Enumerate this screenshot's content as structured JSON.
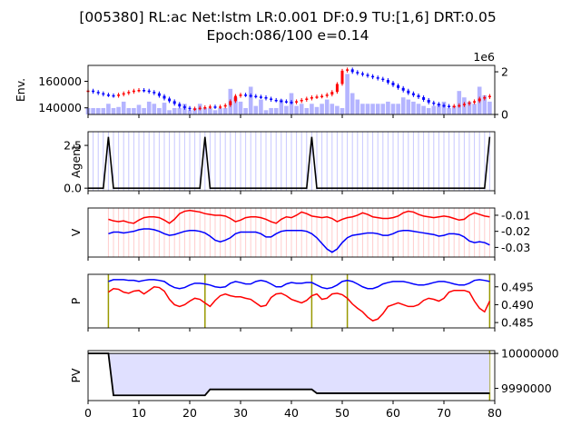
{
  "title": {
    "line1": "[005380] RL:ac Net:lstm LR:0.001 DF:0.9 TU:[1,6] DRT:0.05",
    "line2": "Epoch:086/100 e=0.14"
  },
  "chart_data": [
    {
      "id": "env",
      "type": "candlestick+bar",
      "ylabel": "Env.",
      "ylim": [
        135000,
        172000
      ],
      "yticks": [
        "140000",
        "160000"
      ],
      "ytick_values": [
        140000,
        160000
      ],
      "y2lim": [
        0,
        2300000
      ],
      "y2ticks": [
        "0",
        "2"
      ],
      "y2tick_values": [
        0,
        2000000
      ],
      "y2_offset_label": "1e6",
      "x": [
        0,
        1,
        2,
        3,
        4,
        5,
        6,
        7,
        8,
        9,
        10,
        11,
        12,
        13,
        14,
        15,
        16,
        17,
        18,
        19,
        20,
        21,
        22,
        23,
        24,
        25,
        26,
        27,
        28,
        29,
        30,
        31,
        32,
        33,
        34,
        35,
        36,
        37,
        38,
        39,
        40,
        41,
        42,
        43,
        44,
        45,
        46,
        47,
        48,
        49,
        50,
        51,
        52,
        53,
        54,
        55,
        56,
        57,
        58,
        59,
        60,
        61,
        62,
        63,
        64,
        65,
        66,
        67,
        68,
        69,
        70,
        71,
        72,
        73,
        74,
        75,
        76,
        77,
        78,
        79
      ],
      "close": [
        153000,
        152000,
        151000,
        150000,
        149500,
        149000,
        150000,
        151000,
        152000,
        153000,
        153500,
        153000,
        152000,
        151000,
        149000,
        147000,
        145000,
        143000,
        141000,
        140000,
        139000,
        139500,
        140000,
        140500,
        141000,
        140500,
        141000,
        142000,
        145000,
        149000,
        150000,
        149500,
        149000,
        148500,
        148000,
        147000,
        146000,
        145500,
        145000,
        144500,
        144000,
        145000,
        146000,
        147000,
        148000,
        148500,
        149000,
        150000,
        152000,
        158000,
        168000,
        169000,
        167000,
        166000,
        165000,
        164000,
        163000,
        162000,
        161000,
        159000,
        157000,
        155000,
        153000,
        151000,
        149500,
        148000,
        146000,
        144000,
        143000,
        142000,
        141500,
        141000,
        141500,
        142000,
        143000,
        144000,
        145000,
        147000,
        148000,
        149000
      ],
      "volume": [
        300000,
        300000,
        300000,
        300000,
        500000,
        300000,
        350000,
        600000,
        300000,
        300000,
        450000,
        300000,
        600000,
        500000,
        300000,
        550000,
        200000,
        300000,
        300000,
        500000,
        200000,
        300000,
        500000,
        300000,
        300000,
        200000,
        300000,
        300000,
        1200000,
        800000,
        600000,
        300000,
        1300000,
        400000,
        700000,
        200000,
        300000,
        300000,
        700000,
        400000,
        1000000,
        400000,
        500000,
        300000,
        500000,
        350000,
        500000,
        700000,
        500000,
        400000,
        300000,
        1900000,
        1000000,
        700000,
        500000,
        500000,
        500000,
        500000,
        500000,
        600000,
        500000,
        500000,
        800000,
        700000,
        600000,
        500000,
        400000,
        300000,
        400000,
        500000,
        600000,
        300000,
        400000,
        1100000,
        800000,
        600000,
        500000,
        1300000,
        900000,
        600000
      ],
      "bar_color": "#b4b4ff"
    },
    {
      "id": "agent",
      "type": "line",
      "ylabel": "Agent",
      "ylim": [
        -0.15,
        3.3
      ],
      "yticks": [
        "0.0",
        "2.5"
      ],
      "ytick_values": [
        0,
        2.5
      ],
      "x": [
        0,
        1,
        2,
        3,
        4,
        5,
        6,
        7,
        8,
        9,
        10,
        11,
        12,
        13,
        14,
        15,
        16,
        17,
        18,
        19,
        20,
        21,
        22,
        23,
        24,
        25,
        26,
        27,
        28,
        29,
        30,
        31,
        32,
        33,
        34,
        35,
        36,
        37,
        38,
        39,
        40,
        41,
        42,
        43,
        44,
        45,
        46,
        47,
        48,
        49,
        50,
        51,
        52,
        53,
        54,
        55,
        56,
        57,
        58,
        59,
        60,
        61,
        62,
        63,
        64,
        65,
        66,
        67,
        68,
        69,
        70,
        71,
        72,
        73,
        74,
        75,
        76,
        77,
        78,
        79
      ],
      "values": [
        0,
        0,
        0,
        0,
        3,
        0,
        0,
        0,
        0,
        0,
        0,
        0,
        0,
        0,
        0,
        0,
        0,
        0,
        0,
        0,
        0,
        0,
        0,
        3,
        0,
        0,
        0,
        0,
        0,
        0,
        0,
        0,
        0,
        0,
        0,
        0,
        0,
        0,
        0,
        0,
        0,
        0,
        0,
        0,
        3,
        0,
        0,
        0,
        0,
        0,
        0,
        0,
        0,
        0,
        0,
        0,
        0,
        0,
        0,
        0,
        0,
        0,
        0,
        0,
        0,
        0,
        0,
        0,
        0,
        0,
        0,
        0,
        0,
        0,
        0,
        0,
        0,
        0,
        0,
        3
      ],
      "line_color": "#000000",
      "vline_color": "#c8c8ff"
    },
    {
      "id": "v",
      "type": "line",
      "ylabel": "V",
      "ylim": [
        -0.036,
        -0.0055
      ],
      "yticks": [
        "-0.01",
        "-0.02",
        "-0.03"
      ],
      "ytick_values": [
        -0.01,
        -0.02,
        -0.03
      ],
      "x": [
        4,
        5,
        6,
        7,
        8,
        9,
        10,
        11,
        12,
        13,
        14,
        15,
        16,
        17,
        18,
        19,
        20,
        21,
        22,
        23,
        24,
        25,
        26,
        27,
        28,
        29,
        30,
        31,
        32,
        33,
        34,
        35,
        36,
        37,
        38,
        39,
        40,
        41,
        42,
        43,
        44,
        45,
        46,
        47,
        48,
        49,
        50,
        51,
        52,
        53,
        54,
        55,
        56,
        57,
        58,
        59,
        60,
        61,
        62,
        63,
        64,
        65,
        66,
        67,
        68,
        69,
        70,
        71,
        72,
        73,
        74,
        75,
        76,
        77,
        78,
        79
      ],
      "series": [
        {
          "values": [
            -0.0125,
            -0.0135,
            -0.014,
            -0.0135,
            -0.0145,
            -0.015,
            -0.013,
            -0.0115,
            -0.011,
            -0.011,
            -0.0115,
            -0.013,
            -0.015,
            -0.0125,
            -0.009,
            -0.0075,
            -0.007,
            -0.0075,
            -0.008,
            -0.009,
            -0.0095,
            -0.01,
            -0.01,
            -0.0105,
            -0.012,
            -0.014,
            -0.013,
            -0.0115,
            -0.011,
            -0.011,
            -0.0115,
            -0.0125,
            -0.014,
            -0.015,
            -0.0125,
            -0.011,
            -0.0115,
            -0.01,
            -0.008,
            -0.009,
            -0.0105,
            -0.011,
            -0.0115,
            -0.011,
            -0.012,
            -0.014,
            -0.0125,
            -0.0115,
            -0.011,
            -0.01,
            -0.0085,
            -0.0095,
            -0.011,
            -0.0115,
            -0.012,
            -0.012,
            -0.0115,
            -0.0105,
            -0.0085,
            -0.0075,
            -0.008,
            -0.0095,
            -0.0105,
            -0.011,
            -0.0115,
            -0.011,
            -0.0105,
            -0.011,
            -0.012,
            -0.013,
            -0.0125,
            -0.01,
            -0.0085,
            -0.0095,
            -0.0105,
            -0.011
          ],
          "color": "#ff0000"
        },
        {
          "values": [
            -0.0215,
            -0.0205,
            -0.0205,
            -0.021,
            -0.0205,
            -0.02,
            -0.019,
            -0.0185,
            -0.0185,
            -0.019,
            -0.02,
            -0.0215,
            -0.0225,
            -0.022,
            -0.021,
            -0.02,
            -0.0195,
            -0.0195,
            -0.02,
            -0.021,
            -0.023,
            -0.0255,
            -0.0265,
            -0.0255,
            -0.024,
            -0.0215,
            -0.0205,
            -0.0205,
            -0.0205,
            -0.0205,
            -0.0215,
            -0.0235,
            -0.0235,
            -0.0215,
            -0.02,
            -0.0195,
            -0.0195,
            -0.0195,
            -0.0195,
            -0.02,
            -0.0215,
            -0.024,
            -0.0275,
            -0.031,
            -0.033,
            -0.031,
            -0.027,
            -0.024,
            -0.0225,
            -0.022,
            -0.0215,
            -0.021,
            -0.021,
            -0.0215,
            -0.0225,
            -0.0225,
            -0.0215,
            -0.02,
            -0.0195,
            -0.0195,
            -0.02,
            -0.0205,
            -0.021,
            -0.0215,
            -0.022,
            -0.023,
            -0.0225,
            -0.0215,
            -0.0215,
            -0.022,
            -0.0235,
            -0.026,
            -0.027,
            -0.0265,
            -0.027,
            -0.0285
          ],
          "color": "#0000ff"
        }
      ],
      "vline_color": "#ffcccc"
    },
    {
      "id": "p",
      "type": "line",
      "ylabel": "P",
      "ylim": [
        0.4835,
        0.4985
      ],
      "yticks": [
        "0.495",
        "0.490",
        "0.485"
      ],
      "ytick_values": [
        0.495,
        0.49,
        0.485
      ],
      "x": [
        4,
        5,
        6,
        7,
        8,
        9,
        10,
        11,
        12,
        13,
        14,
        15,
        16,
        17,
        18,
        19,
        20,
        21,
        22,
        23,
        24,
        25,
        26,
        27,
        28,
        29,
        30,
        31,
        32,
        33,
        34,
        35,
        36,
        37,
        38,
        39,
        40,
        41,
        42,
        43,
        44,
        45,
        46,
        47,
        48,
        49,
        50,
        51,
        52,
        53,
        54,
        55,
        56,
        57,
        58,
        59,
        60,
        61,
        62,
        63,
        64,
        65,
        66,
        67,
        68,
        69,
        70,
        71,
        72,
        73,
        74,
        75,
        76,
        77,
        78,
        79
      ],
      "series": [
        {
          "values": [
            0.4965,
            0.497,
            0.497,
            0.497,
            0.4968,
            0.4968,
            0.4965,
            0.4968,
            0.497,
            0.497,
            0.4968,
            0.4965,
            0.4955,
            0.4948,
            0.4945,
            0.4948,
            0.4955,
            0.496,
            0.496,
            0.4958,
            0.4955,
            0.495,
            0.4948,
            0.495,
            0.496,
            0.4965,
            0.4962,
            0.4958,
            0.4958,
            0.4965,
            0.4968,
            0.4965,
            0.4958,
            0.495,
            0.495,
            0.4958,
            0.4962,
            0.496,
            0.496,
            0.4962,
            0.4962,
            0.4955,
            0.4948,
            0.4945,
            0.4948,
            0.4955,
            0.4965,
            0.4968,
            0.4965,
            0.4958,
            0.495,
            0.4945,
            0.4945,
            0.495,
            0.4958,
            0.4962,
            0.4965,
            0.4965,
            0.4965,
            0.4962,
            0.4958,
            0.4955,
            0.4955,
            0.4958,
            0.4962,
            0.4965,
            0.4965,
            0.4962,
            0.4958,
            0.4955,
            0.4955,
            0.496,
            0.4968,
            0.497,
            0.4968,
            0.4965
          ],
          "color": "#0000ff"
        },
        {
          "values": [
            0.4935,
            0.4945,
            0.4943,
            0.4935,
            0.4932,
            0.4938,
            0.494,
            0.493,
            0.494,
            0.495,
            0.4948,
            0.4938,
            0.4915,
            0.49,
            0.4895,
            0.49,
            0.491,
            0.4918,
            0.4915,
            0.4905,
            0.4895,
            0.4912,
            0.4925,
            0.493,
            0.4925,
            0.4922,
            0.4922,
            0.4918,
            0.4915,
            0.4905,
            0.4895,
            0.4898,
            0.492,
            0.493,
            0.4932,
            0.4925,
            0.4915,
            0.491,
            0.4905,
            0.4912,
            0.4925,
            0.493,
            0.4915,
            0.4918,
            0.493,
            0.4932,
            0.4928,
            0.4918,
            0.4902,
            0.489,
            0.488,
            0.4865,
            0.4855,
            0.486,
            0.4875,
            0.4895,
            0.49,
            0.4905,
            0.49,
            0.4895,
            0.4895,
            0.49,
            0.4912,
            0.4918,
            0.4915,
            0.491,
            0.4918,
            0.4935,
            0.494,
            0.494,
            0.494,
            0.4935,
            0.491,
            0.489,
            0.488,
            0.491
          ],
          "color": "#ff0000"
        }
      ],
      "vlines": [
        4,
        23,
        44,
        51,
        79
      ],
      "vline_color": "#999900"
    },
    {
      "id": "pv",
      "type": "area",
      "ylabel": "PV",
      "ylim": [
        9986500,
        10000800
      ],
      "yticks": [
        "10000000",
        "9990000"
      ],
      "ytick_values": [
        10000000,
        9990000
      ],
      "xlim": [
        0,
        80
      ],
      "xticks": [
        "0",
        "10",
        "20",
        "30",
        "40",
        "50",
        "60",
        "70",
        "80"
      ],
      "xtick_values": [
        0,
        10,
        20,
        30,
        40,
        50,
        60,
        70,
        80
      ],
      "baseline": 10000000,
      "x": [
        0,
        1,
        2,
        3,
        4,
        5,
        6,
        7,
        8,
        9,
        10,
        11,
        12,
        13,
        14,
        15,
        16,
        17,
        18,
        19,
        20,
        21,
        22,
        23,
        24,
        25,
        26,
        27,
        28,
        29,
        30,
        31,
        32,
        33,
        34,
        35,
        36,
        37,
        38,
        39,
        40,
        41,
        42,
        43,
        44,
        45,
        46,
        47,
        48,
        49,
        50,
        51,
        52,
        53,
        54,
        55,
        56,
        57,
        58,
        59,
        60,
        61,
        62,
        63,
        64,
        65,
        66,
        67,
        68,
        69,
        70,
        71,
        72,
        73,
        74,
        75,
        76,
        77,
        78,
        79
      ],
      "values": [
        10000000,
        10000000,
        10000000,
        10000000,
        10000000,
        9988000,
        9988000,
        9988000,
        9988000,
        9988000,
        9988000,
        9988000,
        9988000,
        9988000,
        9988000,
        9988000,
        9988000,
        9988000,
        9988000,
        9988000,
        9988000,
        9988000,
        9988000,
        9988000,
        9989700,
        9989700,
        9989700,
        9989700,
        9989700,
        9989700,
        9989700,
        9989700,
        9989700,
        9989700,
        9989700,
        9989700,
        9989700,
        9989700,
        9989700,
        9989700,
        9989700,
        9989700,
        9989700,
        9989700,
        9989700,
        9988600,
        9988600,
        9988600,
        9988600,
        9988600,
        9988600,
        9988600,
        9988600,
        9988600,
        9988600,
        9988600,
        9988600,
        9988600,
        9988600,
        9988600,
        9988600,
        9988600,
        9988600,
        9988600,
        9988600,
        9988600,
        9988600,
        9988600,
        9988600,
        9988600,
        9988600,
        9988600,
        9988600,
        9988600,
        9988600,
        9988600,
        9988600,
        9988600,
        9988600,
        9988600
      ],
      "fill_color": "#e0e0ff",
      "vlines": [
        79
      ],
      "vline_color": "#999900"
    }
  ]
}
